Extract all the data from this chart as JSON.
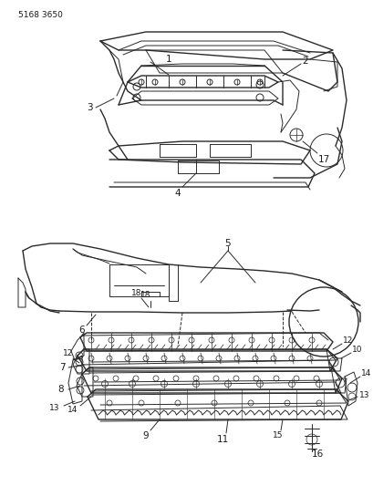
{
  "background_color": "#ffffff",
  "line_color": "#2a2a2a",
  "label_color": "#1a1a1a",
  "part_number": "5168 3650",
  "figsize": [
    4.1,
    5.33
  ],
  "dpi": 100
}
